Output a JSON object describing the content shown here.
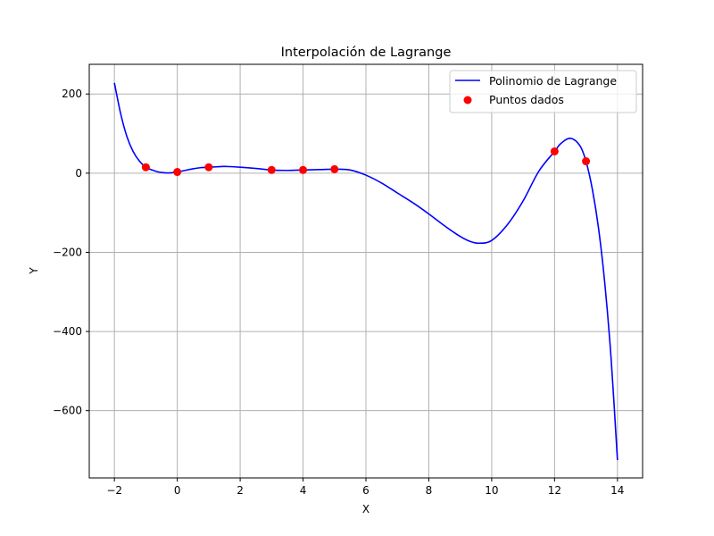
{
  "chart_data": {
    "type": "line",
    "title": "Interpolación de Lagrange",
    "xlabel": "X",
    "ylabel": "Y",
    "xlim": [
      -2.8,
      14.8
    ],
    "ylim": [
      -770,
      275
    ],
    "grid": true,
    "legend_position": "top-right",
    "x_ticks": [
      -2,
      0,
      2,
      4,
      6,
      8,
      10,
      12,
      14
    ],
    "x_tick_labels": [
      "−2",
      "0",
      "2",
      "4",
      "6",
      "8",
      "10",
      "12",
      "14"
    ],
    "y_ticks": [
      200,
      0,
      -200,
      -400,
      -600
    ],
    "y_tick_labels": [
      "200",
      "0",
      "−200",
      "−400",
      "−600"
    ],
    "series": [
      {
        "name": "Polinomio de Lagrange",
        "kind": "line",
        "color": "#0000ff",
        "x": [
          -2,
          -1.8,
          -1.6,
          -1.4,
          -1.2,
          -1,
          -0.8,
          -0.6,
          -0.4,
          -0.2,
          0,
          0.25,
          0.5,
          0.75,
          1,
          1.25,
          1.5,
          2,
          2.5,
          3,
          3.5,
          4,
          4.5,
          5,
          5.5,
          6,
          6.5,
          7,
          7.5,
          8,
          8.5,
          9,
          9.3,
          9.6,
          10,
          10.5,
          11,
          11.5,
          12,
          12.2,
          12.5,
          12.8,
          13,
          13.2,
          13.4,
          13.6,
          13.8,
          14
        ],
        "y": [
          228,
          150,
          92,
          54,
          30,
          15,
          8,
          3,
          1,
          1,
          3,
          7,
          11,
          14,
          15,
          16,
          17,
          15,
          12,
          8,
          7,
          8,
          9,
          10,
          8,
          -5,
          -25,
          -50,
          -75,
          -103,
          -133,
          -160,
          -172,
          -177,
          -170,
          -130,
          -70,
          5,
          55,
          75,
          88,
          70,
          30,
          -40,
          -140,
          -280,
          -470,
          -725
        ]
      },
      {
        "name": "Puntos dados",
        "kind": "scatter",
        "color": "#ff0000",
        "x": [
          -1,
          0,
          1,
          3,
          4,
          5,
          12,
          13
        ],
        "y": [
          15,
          3,
          15,
          8,
          8,
          10,
          55,
          30
        ]
      }
    ]
  }
}
